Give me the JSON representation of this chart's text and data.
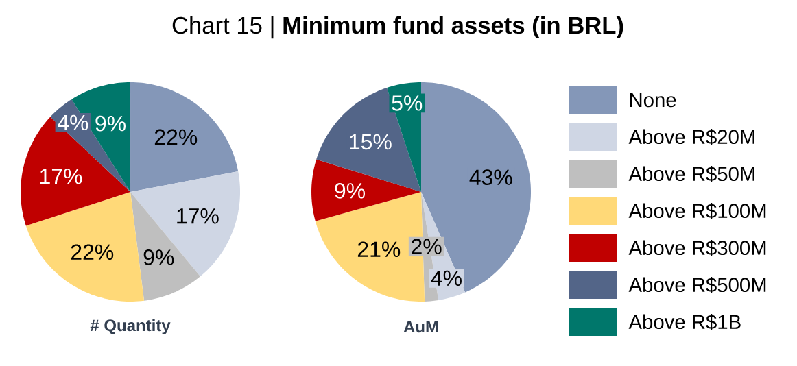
{
  "chart_data": [
    {
      "type": "pie",
      "title": "Chart 15 | **Minimum fund assets (in BRL)**",
      "xlabel": "# Quantity",
      "categories": [
        null,
        null,
        null,
        null,
        null,
        null,
        null
      ],
      "values": [
        22,
        17,
        9,
        22,
        17,
        4,
        9
      ],
      "value_labels": [
        "22%",
        "17%",
        "9%",
        "22%",
        "17%",
        "4%",
        "9%"
      ],
      "colors": [
        "#8497b8",
        "#cfd6e4",
        "#bfbfbf",
        "#ffd978",
        "#c00000",
        "#536588",
        "#00776b"
      ]
    },
    {
      "type": "pie",
      "xlabel": "AuM",
      "categories": [
        "None",
        "Above R$20M",
        "Above R$50M",
        "Above R$100M",
        "Above R$300M",
        "Above R$500M",
        "Above R$1B"
      ],
      "values": [
        43,
        4,
        2,
        21,
        9,
        15,
        5
      ],
      "value_labels": [
        "43%",
        "4%",
        "2%",
        "21%",
        "9%",
        "15%",
        "5%"
      ],
      "colors": [
        "#8497b8",
        "#cfd6e4",
        "#bfbfbf",
        "#ffd978",
        "#c00000",
        "#536588",
        "#00776b"
      ],
      "legend": "right"
    }
  ]
}
